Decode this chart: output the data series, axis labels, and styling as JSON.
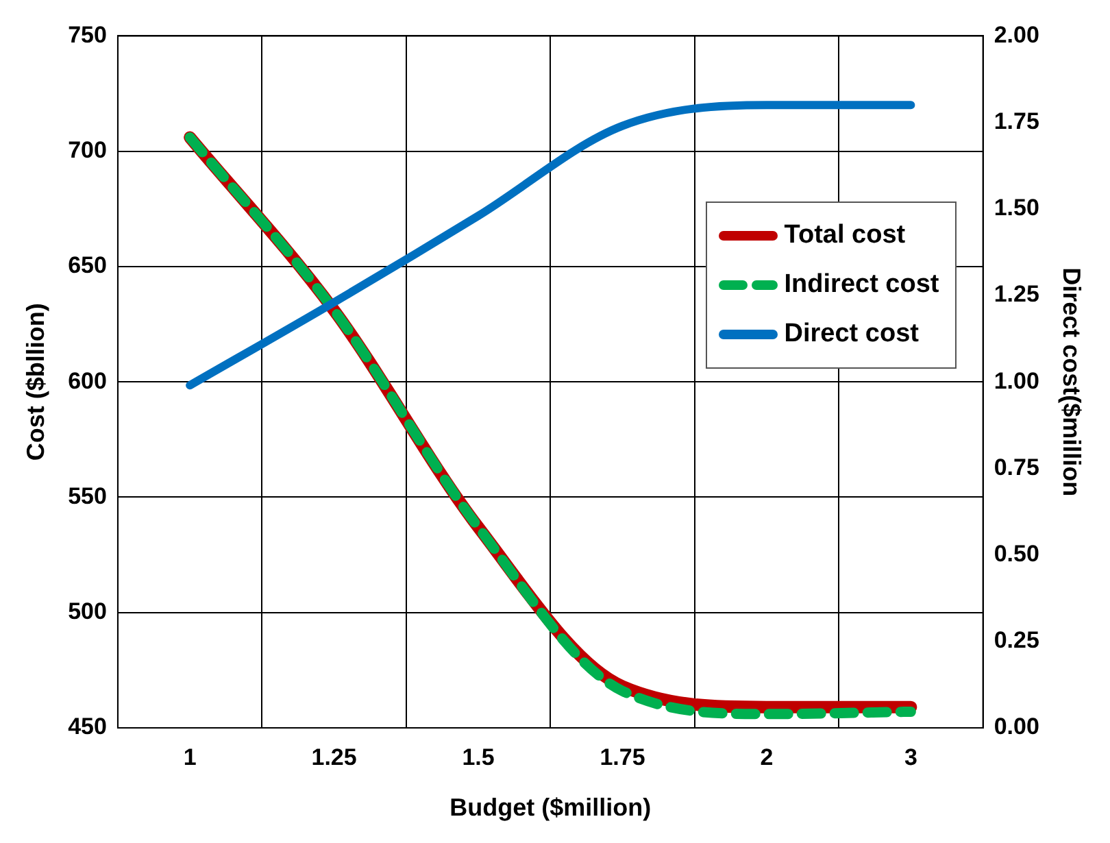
{
  "chart_data": {
    "type": "line",
    "xlabel": "Budget ($million)",
    "ylabel": "Cost ($bllion)",
    "y2label": "Direct cost($million",
    "categories": [
      "1",
      "1.25",
      "1.5",
      "1.75",
      "2",
      "3"
    ],
    "series": [
      {
        "name": "Total cost",
        "color": "#c00000",
        "values": [
          706,
          631,
          537,
          468,
          459,
          459
        ],
        "line_style": "solid"
      },
      {
        "name": "Indirect cost",
        "color": "#00b050",
        "values": [
          706,
          631,
          537,
          466,
          456,
          457
        ],
        "line_style": "dashed"
      },
      {
        "name": "Direct cost",
        "color": "#0070c0",
        "values": [
          0.99,
          1.23,
          1.48,
          1.74,
          1.8,
          1.8
        ],
        "axis": "y2",
        "line_style": "solid"
      }
    ],
    "ylim": [
      450,
      750
    ],
    "yticks": [
      450,
      500,
      550,
      600,
      650,
      700,
      750
    ],
    "y2lim": [
      0,
      2
    ],
    "y2ticks": [
      {
        "value": 0,
        "label": "0.00"
      },
      {
        "value": 0.25,
        "label": "0.25"
      },
      {
        "value": 0.5,
        "label": "0.50"
      },
      {
        "value": 0.75,
        "label": "0.75"
      },
      {
        "value": 1,
        "label": "1.00"
      },
      {
        "value": 1.25,
        "label": "1.25"
      },
      {
        "value": 1.5,
        "label": "1.50"
      },
      {
        "value": 1.75,
        "label": "1.75"
      },
      {
        "value": 2,
        "label": "2.00"
      }
    ],
    "grid": true,
    "legend": "right",
    "marker": "none"
  }
}
